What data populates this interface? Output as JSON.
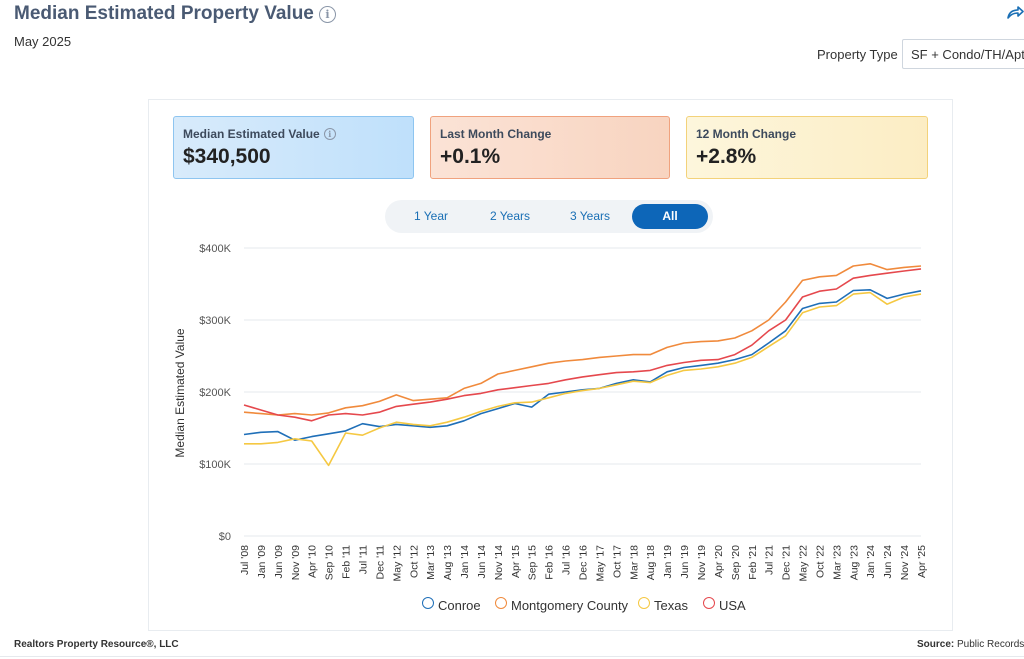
{
  "header": {
    "title": "Median Estimated Property Value",
    "subtitle": "May 2025",
    "property_type_label": "Property Type",
    "property_type_value": "SF + Condo/TH/Apt"
  },
  "cards": [
    {
      "label": "Median Estimated Value",
      "value": "$340,500"
    },
    {
      "label": "Last Month Change",
      "value": "+0.1%"
    },
    {
      "label": "12 Month Change",
      "value": "+2.8%"
    }
  ],
  "range_buttons": [
    "1 Year",
    "2 Years",
    "3 Years",
    "All"
  ],
  "range_selected": "All",
  "footer": {
    "left": "Realtors Property Resource®, LLC",
    "source_label": "Source:",
    "source_value": "Public Records"
  },
  "colors": {
    "Conroe": "#1f6fb8",
    "Montgomery County": "#f08a3c",
    "Texas": "#f5c842",
    "USA": "#e5484d"
  },
  "chart_data": {
    "type": "line",
    "ylabel": "Median Estimated Value",
    "xlabel": "",
    "ylim": [
      0,
      400000
    ],
    "y_ticks": [
      "$0",
      "$100K",
      "$200K",
      "$300K",
      "$400K"
    ],
    "x_ticks": [
      "Jul '08",
      "Jan '09",
      "Jun '09",
      "Nov '09",
      "Apr '10",
      "Sep '10",
      "Feb '11",
      "Jul '11",
      "Dec '11",
      "May '12",
      "Oct '12",
      "Mar '13",
      "Aug '13",
      "Jan '14",
      "Jun '14",
      "Nov '14",
      "Apr '15",
      "Sep '15",
      "Feb '16",
      "Jul '16",
      "Dec '16",
      "May '17",
      "Oct '17",
      "Mar '18",
      "Aug '18",
      "Jan '19",
      "Jun '19",
      "Nov '19",
      "Apr '20",
      "Sep '20",
      "Feb '21",
      "Jul '21",
      "Dec '21",
      "May '22",
      "Oct '22",
      "Mar '23",
      "Aug '23",
      "Jan '24",
      "Jun '24",
      "Nov '24",
      "Apr '25"
    ],
    "grid": true,
    "legend": "bottom",
    "series": [
      {
        "name": "Conroe",
        "values": [
          141000,
          144000,
          145000,
          133000,
          138000,
          142000,
          146000,
          156000,
          152000,
          155000,
          153000,
          151000,
          153000,
          160000,
          170000,
          177000,
          184000,
          179000,
          197000,
          200000,
          203000,
          205000,
          212000,
          217000,
          214000,
          228000,
          234000,
          237000,
          240000,
          245000,
          252000,
          268000,
          285000,
          316000,
          323000,
          325000,
          341000,
          342000,
          330000,
          336000,
          340500
        ]
      },
      {
        "name": "Montgomery County",
        "values": [
          172000,
          170000,
          168000,
          170000,
          168000,
          171000,
          178000,
          181000,
          187000,
          196000,
          188000,
          190000,
          192000,
          205000,
          212000,
          225000,
          230000,
          235000,
          240000,
          243000,
          245000,
          248000,
          250000,
          252000,
          252000,
          262000,
          268000,
          270000,
          271000,
          275000,
          285000,
          300000,
          325000,
          355000,
          360000,
          362000,
          375000,
          378000,
          370000,
          373000,
          375000
        ]
      },
      {
        "name": "Texas",
        "values": [
          128000,
          128000,
          130000,
          135000,
          132000,
          98000,
          143000,
          140000,
          150000,
          158000,
          155000,
          153000,
          158000,
          165000,
          173000,
          180000,
          185000,
          186000,
          192000,
          198000,
          202000,
          205000,
          210000,
          215000,
          213000,
          223000,
          230000,
          232000,
          235000,
          240000,
          248000,
          263000,
          278000,
          310000,
          318000,
          320000,
          336000,
          338000,
          322000,
          332000,
          336000
        ]
      },
      {
        "name": "USA",
        "values": [
          182000,
          175000,
          168000,
          165000,
          160000,
          168000,
          170000,
          168000,
          172000,
          180000,
          183000,
          186000,
          190000,
          195000,
          198000,
          203000,
          206000,
          209000,
          212000,
          217000,
          221000,
          224000,
          227000,
          228000,
          230000,
          237000,
          241000,
          244000,
          245000,
          252000,
          265000,
          285000,
          300000,
          332000,
          340000,
          343000,
          358000,
          362000,
          365000,
          368000,
          371000
        ]
      }
    ]
  }
}
